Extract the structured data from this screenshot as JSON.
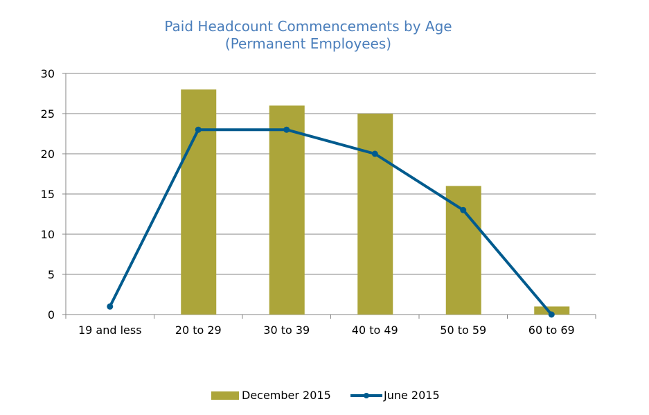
{
  "chart_data": {
    "type": "bar",
    "title": "Paid Headcount Commencements by Age",
    "subtitle": "(Permanent Employees)",
    "categories": [
      "19 and less",
      "20 to 29",
      "30 to 39",
      "40 to 49",
      "50 to 59",
      "60 to 69"
    ],
    "series": [
      {
        "name": "December 2015",
        "type": "bar",
        "color": "#aca53a",
        "values": [
          0,
          28,
          26,
          25,
          16,
          1
        ]
      },
      {
        "name": "June 2015",
        "type": "line",
        "color": "#005b8e",
        "values": [
          1,
          23,
          23,
          20,
          13,
          0
        ]
      }
    ],
    "ylim": [
      0,
      30
    ],
    "yticks": [
      0,
      5,
      10,
      15,
      20,
      25,
      30
    ],
    "grid": true,
    "legend_position": "bottom"
  }
}
